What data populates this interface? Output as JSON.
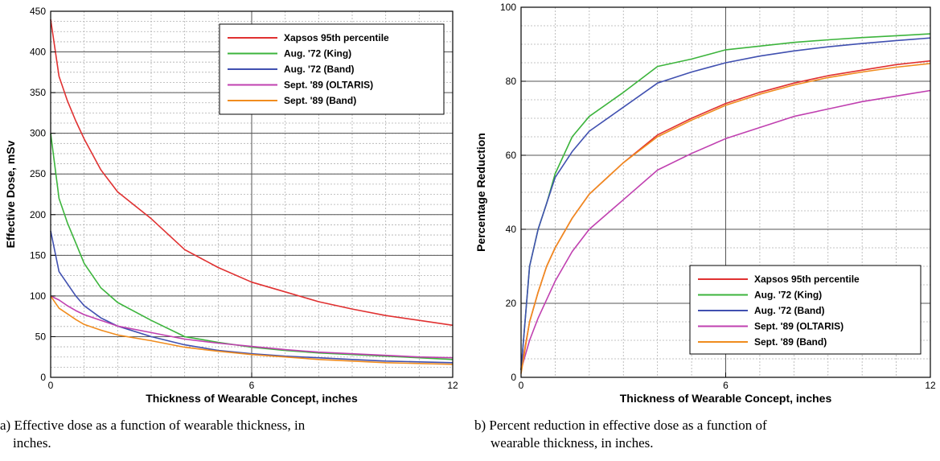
{
  "chart_data": [
    {
      "type": "line",
      "xlabel": "Thickness of Wearable Concept, inches",
      "ylabel": "Effective Dose, mSv",
      "xlim": [
        0,
        12
      ],
      "ylim": [
        0,
        450
      ],
      "x_ticks": [
        "0",
        "6",
        "12"
      ],
      "y_ticks": [
        "0",
        "50",
        "100",
        "150",
        "200",
        "250",
        "300",
        "350",
        "400",
        "450"
      ],
      "grid": true,
      "legend_position": "top-right",
      "series": [
        {
          "name": "Xapsos 95th percentile",
          "color": "#e03131",
          "x": [
            0,
            0.25,
            0.5,
            0.75,
            1,
            1.5,
            2,
            3,
            4,
            5,
            6,
            7,
            8,
            9,
            10,
            11,
            12
          ],
          "y": [
            440,
            370,
            340,
            315,
            293,
            255,
            228,
            195,
            157,
            135,
            117,
            105,
            93,
            84,
            76,
            70,
            64
          ]
        },
        {
          "name": "Aug. '72 (King)",
          "color": "#3cb43c",
          "x": [
            0,
            0.25,
            0.5,
            0.75,
            1,
            1.5,
            2,
            3,
            4,
            5,
            6,
            7,
            8,
            9,
            10,
            11,
            12
          ],
          "y": [
            300,
            220,
            190,
            165,
            140,
            110,
            92,
            70,
            50,
            43,
            37,
            33,
            30,
            28,
            26,
            24,
            22
          ]
        },
        {
          "name": "Aug. '72 (Band)",
          "color": "#4050b0",
          "x": [
            0,
            0.25,
            0.5,
            0.75,
            1,
            1.5,
            2,
            3,
            4,
            5,
            6,
            7,
            8,
            9,
            10,
            11,
            12
          ],
          "y": [
            180,
            130,
            115,
            100,
            88,
            73,
            63,
            50,
            40,
            33,
            29,
            26,
            24,
            22,
            20,
            19,
            18
          ]
        },
        {
          "name": "Sept. '89 (OLTARIS)",
          "color": "#c040b0",
          "x": [
            0,
            0.25,
            0.5,
            0.75,
            1,
            1.5,
            2,
            3,
            4,
            5,
            6,
            7,
            8,
            9,
            10,
            11,
            12
          ],
          "y": [
            100,
            95,
            88,
            82,
            77,
            70,
            63,
            55,
            47,
            42,
            38,
            34,
            31,
            29,
            27,
            25,
            24
          ]
        },
        {
          "name": "Sept. '89 (Band)",
          "color": "#f08c1e",
          "x": [
            0,
            0.25,
            0.5,
            0.75,
            1,
            1.5,
            2,
            3,
            4,
            5,
            6,
            7,
            8,
            9,
            10,
            11,
            12
          ],
          "y": [
            100,
            85,
            78,
            71,
            65,
            58,
            52,
            45,
            37,
            32,
            28,
            25,
            22,
            20,
            18,
            17,
            16
          ]
        }
      ]
    },
    {
      "type": "line",
      "xlabel": "Thickness of Wearable Concept, inches",
      "ylabel": "Percentage Reduction",
      "xlim": [
        0,
        12
      ],
      "ylim": [
        0,
        100
      ],
      "x_ticks": [
        "0",
        "6",
        "12"
      ],
      "y_ticks": [
        "0",
        "20",
        "40",
        "60",
        "80",
        "100"
      ],
      "grid": true,
      "legend_position": "bottom-right",
      "series": [
        {
          "name": "Xapsos 95th percentile",
          "color": "#e03131",
          "x": [
            0,
            0.25,
            0.5,
            0.75,
            1,
            1.5,
            2,
            3,
            4,
            5,
            6,
            7,
            8,
            9,
            10,
            11,
            12
          ],
          "y": [
            2,
            15,
            23,
            30,
            35,
            43,
            49.5,
            58,
            65.5,
            70,
            74,
            77,
            79.5,
            81.5,
            83,
            84.5,
            85.5
          ]
        },
        {
          "name": "Aug. '72 (King)",
          "color": "#3cb43c",
          "x": [
            0,
            0.25,
            0.5,
            0.75,
            1,
            1.5,
            2,
            3,
            4,
            5,
            6,
            7,
            8,
            9,
            10,
            11,
            12
          ],
          "y": [
            2,
            30,
            40,
            47,
            55,
            65,
            70.5,
            77,
            84,
            86,
            88.5,
            89.5,
            90.5,
            91.2,
            91.8,
            92.3,
            92.8
          ]
        },
        {
          "name": "Aug. '72 (Band)",
          "color": "#4050b0",
          "x": [
            0,
            0.25,
            0.5,
            0.75,
            1,
            1.5,
            2,
            3,
            4,
            5,
            6,
            7,
            8,
            9,
            10,
            11,
            12
          ],
          "y": [
            2,
            30,
            40,
            47,
            54,
            61,
            66.5,
            73,
            79.5,
            82.5,
            85,
            86.8,
            88.2,
            89.3,
            90.2,
            91,
            91.7
          ]
        },
        {
          "name": "Sept. '89 (OLTARIS)",
          "color": "#c040b0",
          "x": [
            0,
            0.25,
            0.5,
            0.75,
            1,
            1.5,
            2,
            3,
            4,
            5,
            6,
            7,
            8,
            9,
            10,
            11,
            12
          ],
          "y": [
            2,
            10,
            16,
            21,
            26,
            34,
            40,
            48,
            56,
            60.5,
            64.5,
            67.5,
            70.5,
            72.5,
            74.5,
            76,
            77.5
          ]
        },
        {
          "name": "Sept. '89 (Band)",
          "color": "#f08c1e",
          "x": [
            0,
            0.25,
            0.5,
            0.75,
            1,
            1.5,
            2,
            3,
            4,
            5,
            6,
            7,
            8,
            9,
            10,
            11,
            12
          ],
          "y": [
            1,
            15,
            23,
            30,
            35,
            43,
            49.5,
            58,
            65,
            69.5,
            73.5,
            76.5,
            79,
            81,
            82.5,
            83.8,
            84.8
          ]
        }
      ]
    }
  ],
  "captions": [
    {
      "label": "a)",
      "text": "Effective dose as a function of wearable thickness, in",
      "text2": "inches."
    },
    {
      "label": "b)",
      "text": "Percent reduction in effective dose as a function of",
      "text2": "wearable thickness, in inches."
    }
  ]
}
